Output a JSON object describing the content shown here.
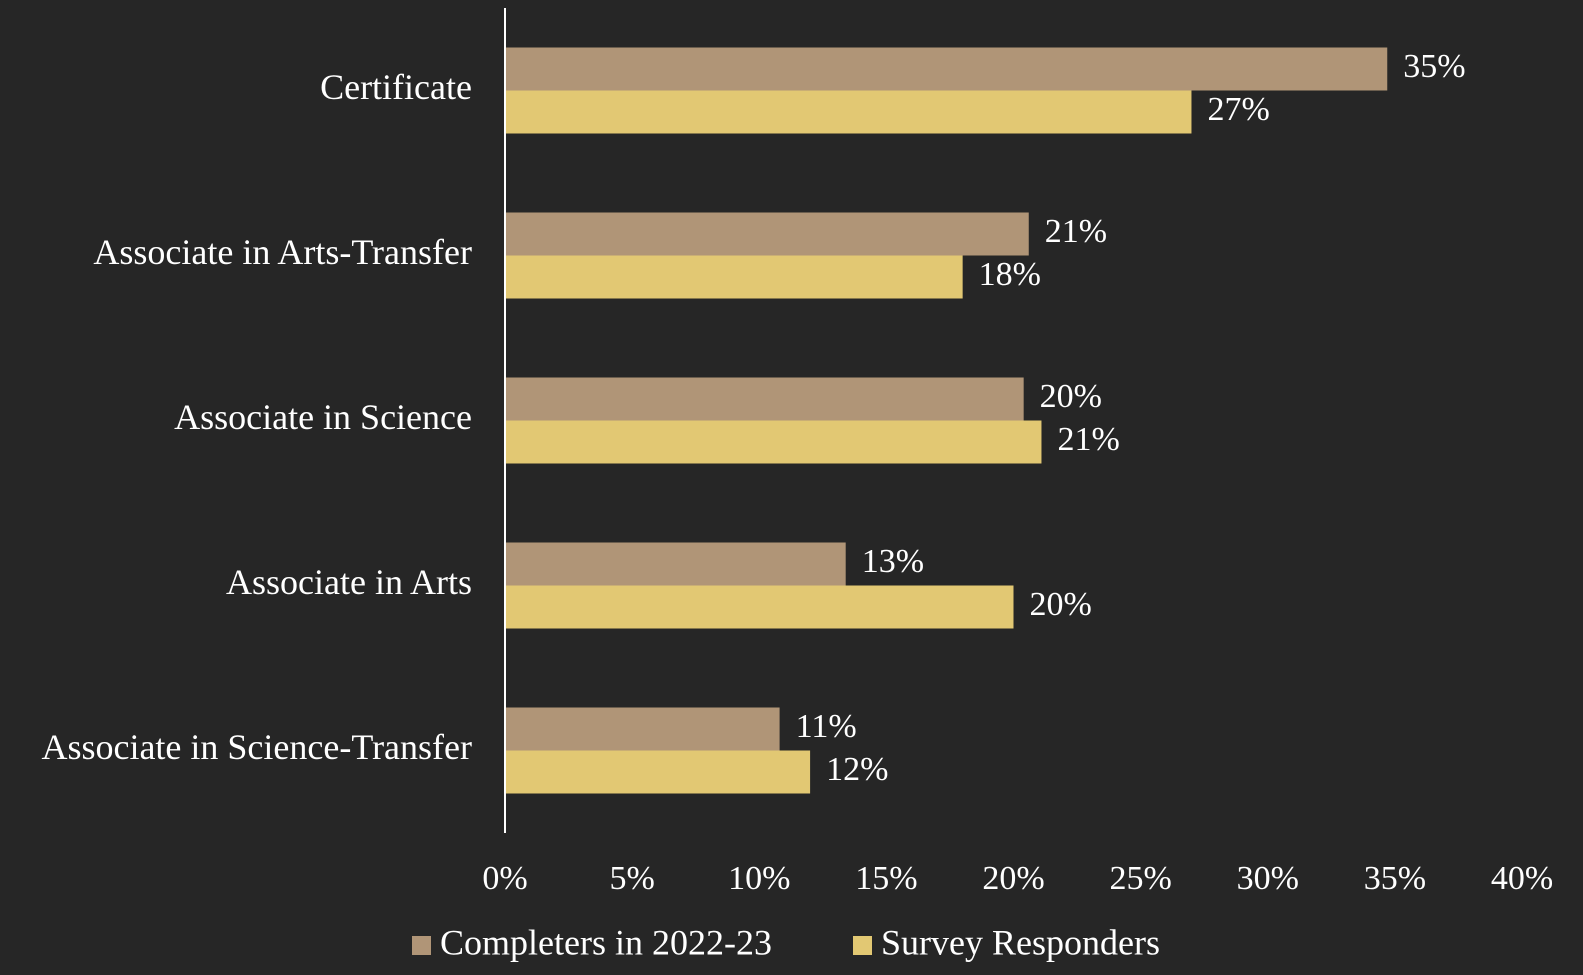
{
  "chart_data": {
    "type": "hbar",
    "categories": [
      "Certificate",
      "Associate in Arts-Transfer",
      "Associate in Science",
      "Associate in Arts",
      "Associate in Science-Transfer"
    ],
    "series": [
      {
        "name": "Completers in 2022-23",
        "color": "#b09577",
        "values": [
          34.7,
          20.6,
          20.4,
          13.4,
          10.8
        ],
        "value_labels": [
          "35%",
          "21%",
          "20%",
          "13%",
          "11%"
        ]
      },
      {
        "name": "Survey Responders",
        "color": "#e2c873",
        "values": [
          27.0,
          18.0,
          21.1,
          20.0,
          12.0
        ],
        "value_labels": [
          "27%",
          "18%",
          "21%",
          "20%",
          "12%"
        ]
      }
    ],
    "xlim": [
      0,
      40
    ],
    "xticks": [
      {
        "value": 0,
        "label": "0%"
      },
      {
        "value": 5,
        "label": "5%"
      },
      {
        "value": 10,
        "label": "10%"
      },
      {
        "value": 15,
        "label": "15%"
      },
      {
        "value": 20,
        "label": "20%"
      },
      {
        "value": 25,
        "label": "25%"
      },
      {
        "value": 30,
        "label": "30%"
      },
      {
        "value": 35,
        "label": "35%"
      },
      {
        "value": 40,
        "label": "40%"
      }
    ],
    "legend": "bottom"
  }
}
